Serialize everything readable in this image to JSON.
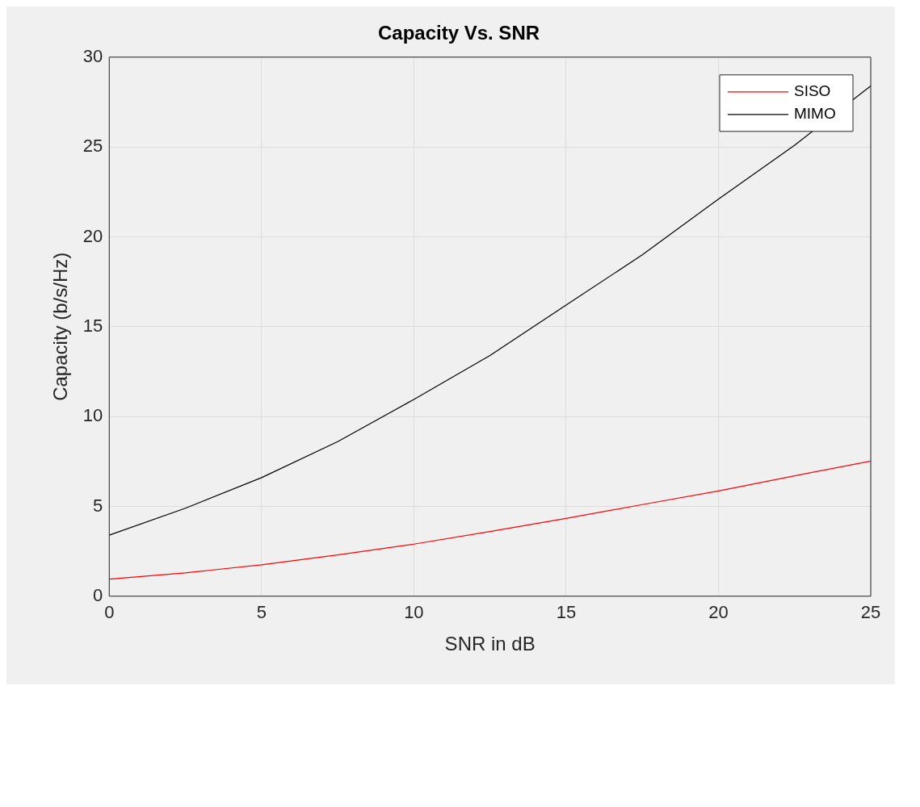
{
  "chart_data": {
    "type": "line",
    "title": "Capacity Vs. SNR",
    "xlabel": "SNR in dB",
    "ylabel": "Capacity (b/s/Hz)",
    "x": [
      0,
      2.5,
      5,
      7.5,
      10,
      12.5,
      15,
      17.5,
      20,
      22.5,
      25
    ],
    "series": [
      {
        "name": "SISO",
        "color": "#ff0000",
        "values": [
          0.95,
          1.3,
          1.75,
          2.3,
          2.9,
          3.6,
          4.33,
          5.1,
          5.86,
          6.7,
          7.52
        ]
      },
      {
        "name": "MIMO",
        "color": "#000000",
        "values": [
          3.4,
          4.9,
          6.6,
          8.6,
          10.95,
          13.4,
          16.2,
          19.0,
          22.1,
          25.1,
          28.4
        ]
      }
    ],
    "xlim": [
      0,
      25
    ],
    "xticks": [
      0,
      5,
      10,
      15,
      20,
      25
    ],
    "ylim": [
      0,
      30
    ],
    "yticks": [
      0,
      5,
      10,
      15,
      20,
      25,
      30
    ],
    "grid": true,
    "legend": "top right",
    "marker": "none",
    "line_style": "solid"
  }
}
